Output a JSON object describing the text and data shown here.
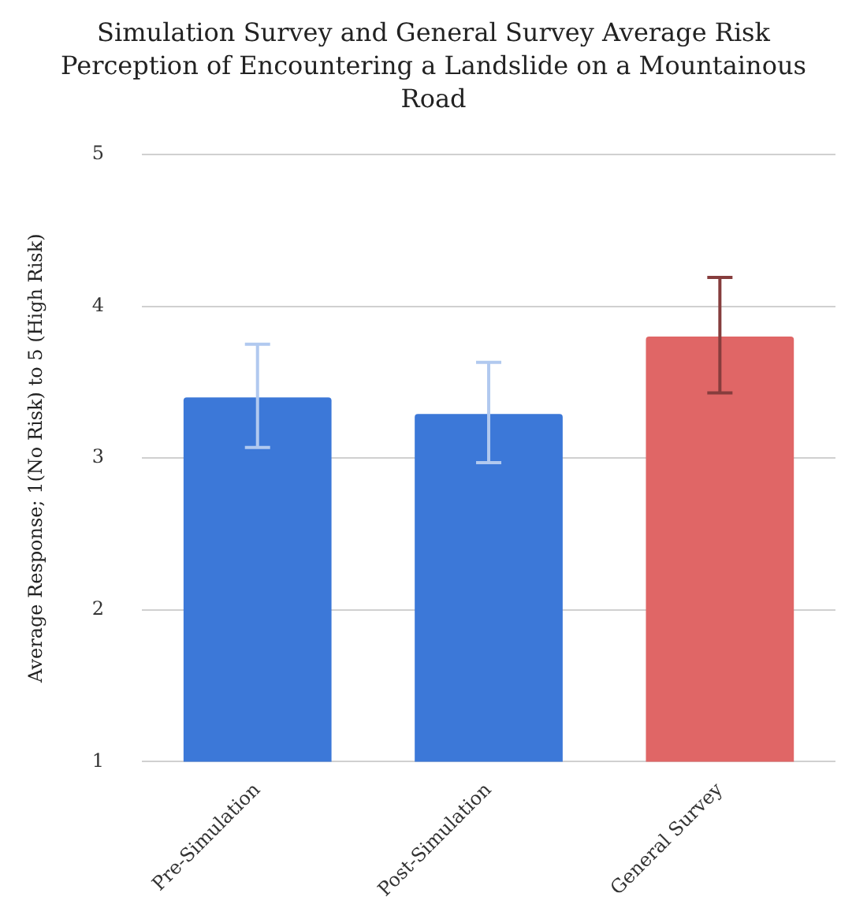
{
  "chart_data": {
    "type": "bar",
    "title": "Simulation Survey and General Survey Average Risk Perception of Encountering a Landslide on a Mountainous Road",
    "ylabel": "Average Response; 1(No Risk) to 5 (High Risk)",
    "categories": [
      "Pre-Simulation",
      "Post-Simulation",
      "General Survey"
    ],
    "values": [
      3.4,
      3.29,
      3.8
    ],
    "colors": [
      "#3c78d8",
      "#3c78d8",
      "#e06666"
    ],
    "errors": [
      [
        3.07,
        3.75
      ],
      [
        2.97,
        3.63
      ],
      [
        3.43,
        4.19
      ]
    ],
    "ylim": [
      1,
      5
    ],
    "yticks": [
      1,
      2,
      3,
      4,
      5
    ],
    "grid": "y",
    "legend": false
  }
}
